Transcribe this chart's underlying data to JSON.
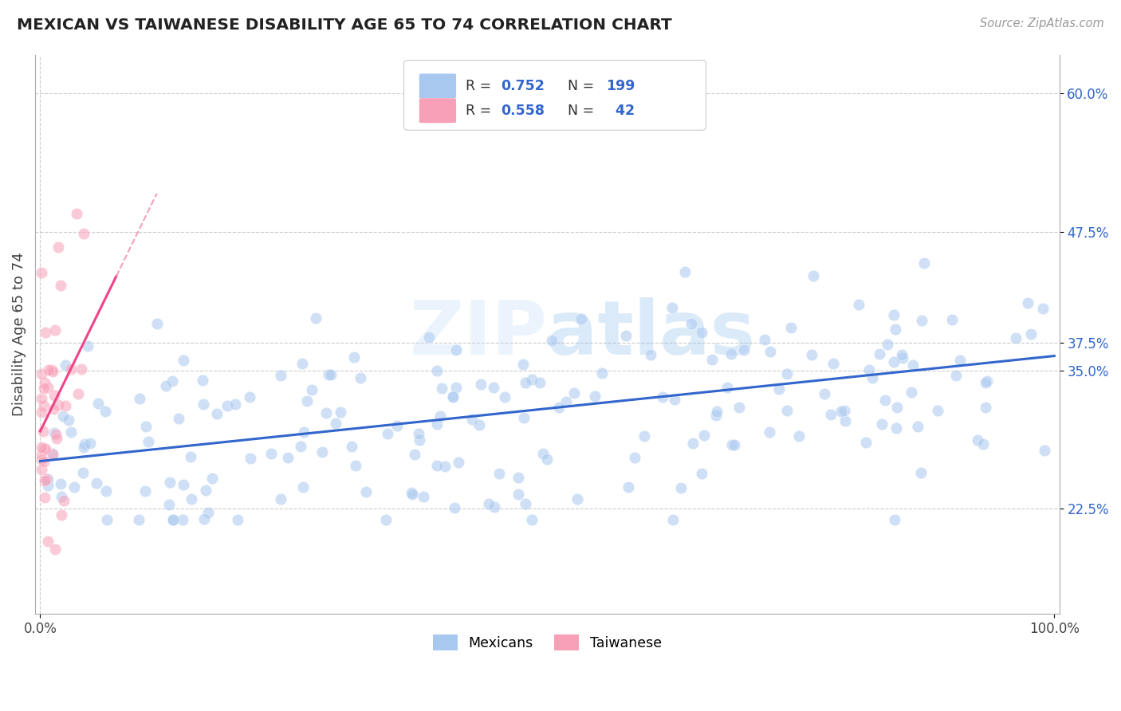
{
  "title": "MEXICAN VS TAIWANESE DISABILITY AGE 65 TO 74 CORRELATION CHART",
  "source_text": "Source: ZipAtlas.com",
  "ylabel": "Disability Age 65 to 74",
  "xlim": [
    -0.005,
    1.005
  ],
  "ylim": [
    0.13,
    0.635
  ],
  "blue_R": 0.752,
  "blue_N": 199,
  "pink_R": 0.558,
  "pink_N": 42,
  "blue_color": "#A8C8F0",
  "blue_line_color": "#3366CC",
  "pink_color": "#F8A0B8",
  "pink_line_color": "#EE4488",
  "pink_line_dash_color": "#F8A0B8",
  "blue_scatter_alpha": 0.55,
  "pink_scatter_alpha": 0.55,
  "marker_size": 110,
  "background_color": "#FFFFFF",
  "grid_color": "#CCCCCC",
  "watermark": "ZIPatlas",
  "legend_label_blue": "Mexicans",
  "legend_label_pink": "Taiwanese",
  "blue_line_x0": 0.0,
  "blue_line_y0": 0.268,
  "blue_line_x1": 1.0,
  "blue_line_y1": 0.363,
  "pink_line_x0": 0.0,
  "pink_line_x1": 0.075,
  "pink_line_y0": 0.295,
  "pink_line_y1": 0.435,
  "ytick_positions": [
    0.225,
    0.35,
    0.375,
    0.475,
    0.6
  ],
  "ytick_labels": [
    "22.5%",
    "35.0%",
    "37.5%",
    "47.5%",
    "60.0%"
  ],
  "xtick_positions": [
    0.0,
    1.0
  ],
  "xtick_labels": [
    "0.0%",
    "100.0%"
  ]
}
